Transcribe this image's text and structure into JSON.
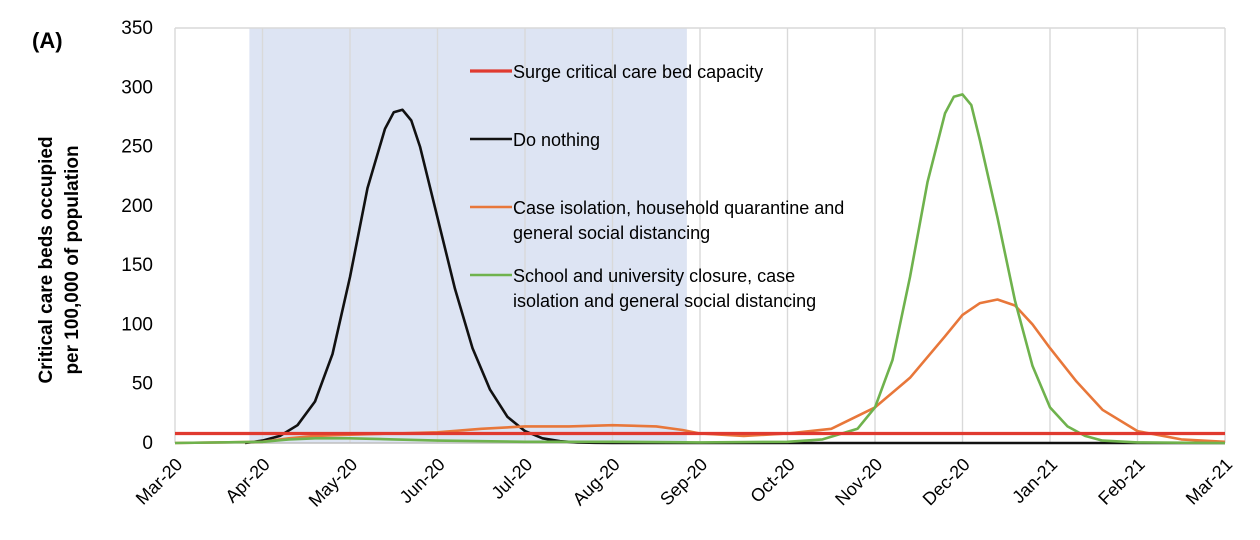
{
  "chart_data": {
    "type": "line",
    "panel_label": "(A)",
    "xlabel": "",
    "ylabel_lines": [
      "Critical care beds occupied",
      "per 100,000 of population"
    ],
    "ylim": [
      0,
      350
    ],
    "yticks": [
      0,
      50,
      100,
      150,
      200,
      250,
      300,
      350
    ],
    "xticks": [
      "Mar-20",
      "Apr-20",
      "May-20",
      "Jun-20",
      "Jul-20",
      "Aug-20",
      "Sep-20",
      "Oct-20",
      "Nov-20",
      "Dec-20",
      "Jan-21",
      "Feb-21",
      "Mar-21"
    ],
    "xlim_months": [
      0,
      12
    ],
    "grid": "vertical",
    "shaded_period": {
      "start": 0.85,
      "end": 5.85,
      "color": "#dde4f3"
    },
    "capacity_line": {
      "name": "Surge critical care bed capacity",
      "value": 8,
      "color": "#e03a2f"
    },
    "series": [
      {
        "name": "Do nothing",
        "color": "#111111",
        "x": [
          0.8,
          1.0,
          1.2,
          1.4,
          1.6,
          1.8,
          2.0,
          2.2,
          2.4,
          2.5,
          2.6,
          2.7,
          2.8,
          3.0,
          3.2,
          3.4,
          3.6,
          3.8,
          4.0,
          4.2,
          4.4,
          4.6,
          4.8,
          5.0,
          5.5,
          6.0,
          12.0
        ],
        "y": [
          0,
          2,
          6,
          15,
          35,
          75,
          140,
          215,
          265,
          279,
          281,
          272,
          250,
          190,
          130,
          80,
          45,
          22,
          10,
          4,
          1.5,
          0.5,
          0.2,
          0,
          0,
          0,
          0
        ]
      },
      {
        "name": "Case isolation, household quarantine and\ngeneral social distancing",
        "color": "#e8773a",
        "x": [
          0,
          1.0,
          1.3,
          1.6,
          2.0,
          2.5,
          3.0,
          3.5,
          4.0,
          4.5,
          5.0,
          5.5,
          5.8,
          6.0,
          6.5,
          7.0,
          7.5,
          8.0,
          8.4,
          8.8,
          9.0,
          9.2,
          9.4,
          9.6,
          9.8,
          10.0,
          10.3,
          10.6,
          11.0,
          11.5,
          12.0
        ],
        "y": [
          0,
          1,
          4,
          6,
          7,
          8,
          9,
          12,
          14,
          14,
          15,
          14,
          11,
          8,
          6,
          8,
          12,
          30,
          55,
          90,
          108,
          118,
          121,
          116,
          100,
          80,
          52,
          28,
          10,
          3,
          1
        ]
      },
      {
        "name": "School and university closure, case\nisolation and general social distancing",
        "color": "#6fb24d",
        "x": [
          0,
          1.0,
          1.3,
          1.6,
          2.0,
          2.5,
          3.0,
          4.0,
          5.0,
          6.0,
          7.0,
          7.4,
          7.8,
          8.0,
          8.2,
          8.4,
          8.6,
          8.8,
          8.9,
          9.0,
          9.1,
          9.2,
          9.4,
          9.6,
          9.8,
          10.0,
          10.2,
          10.4,
          10.6,
          11.0,
          12.0
        ],
        "y": [
          0,
          1,
          3,
          4,
          4,
          3,
          2,
          1,
          1,
          0.5,
          1,
          3,
          12,
          30,
          70,
          140,
          220,
          278,
          292,
          294,
          285,
          255,
          190,
          120,
          65,
          30,
          14,
          6,
          2,
          0.5,
          0
        ]
      }
    ],
    "legend_placement": "upper-center"
  }
}
